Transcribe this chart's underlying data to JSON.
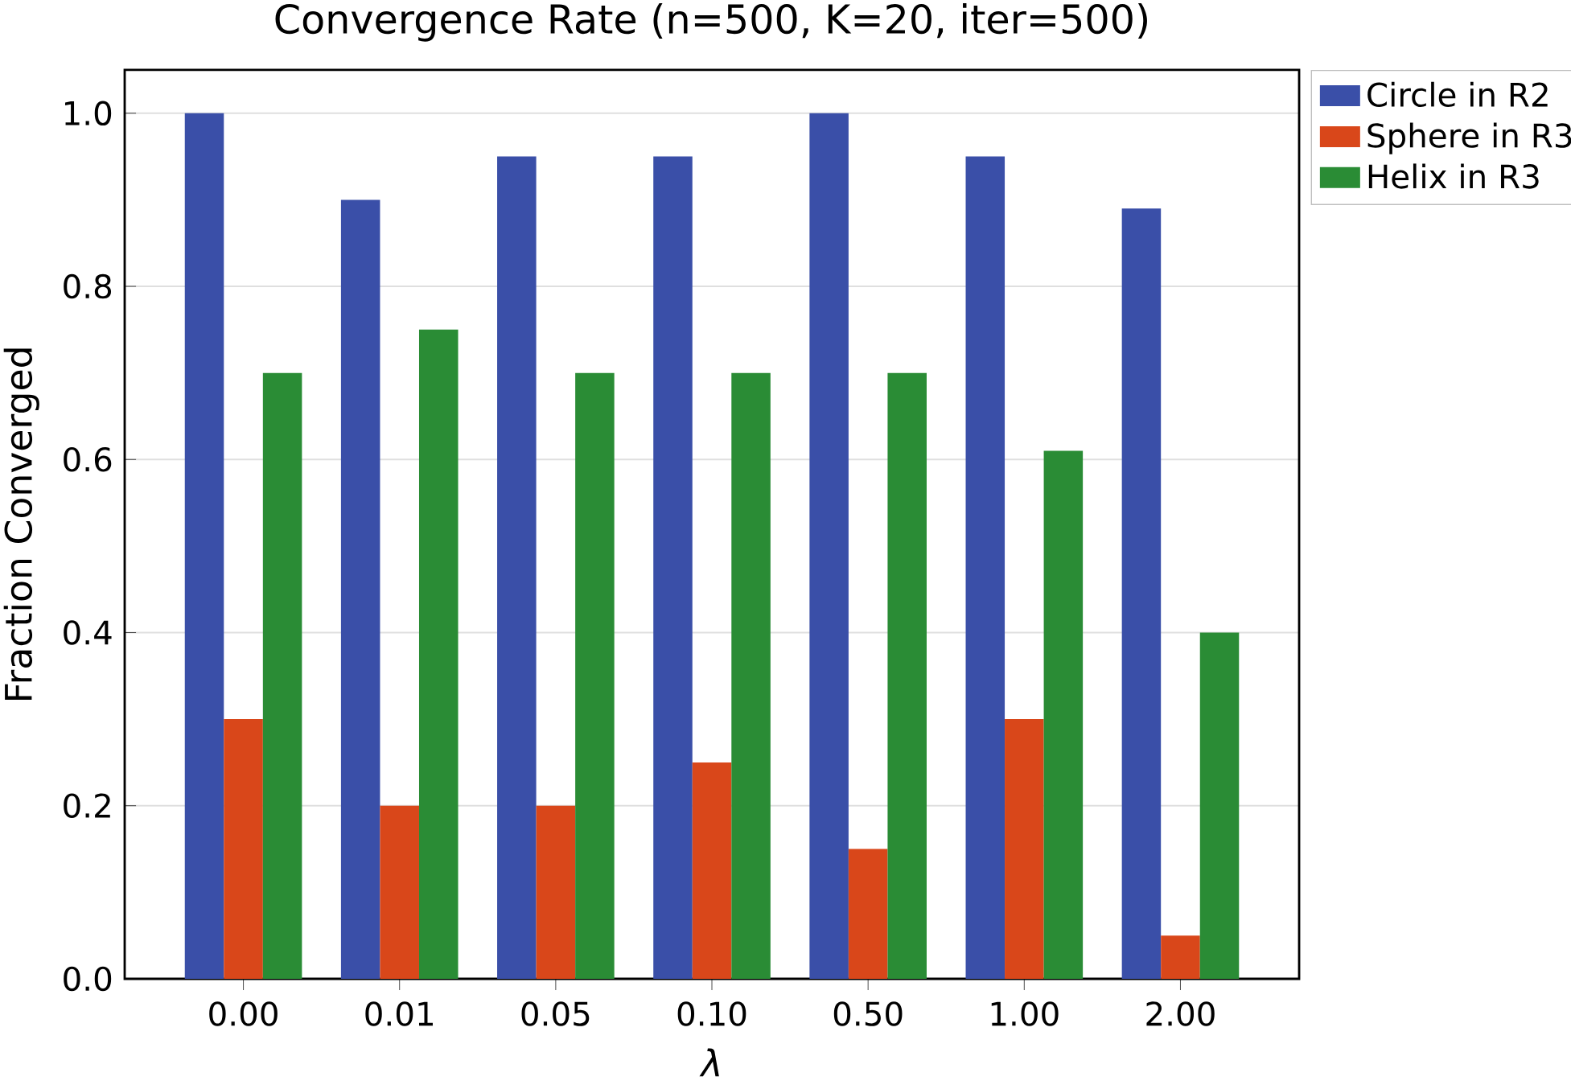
{
  "chart_data": {
    "type": "bar",
    "title": "Convergence Rate (n=500, K=20, iter=500)",
    "xlabel": "*λ*",
    "ylabel": "Fraction Converged",
    "categories": [
      "0.00",
      "0.01",
      "0.05",
      "0.10",
      "0.50",
      "1.00",
      "2.00"
    ],
    "series": [
      {
        "name": "Circle in R2",
        "color": "#3a4fa8",
        "values": [
          1.0,
          0.9,
          0.95,
          0.95,
          1.0,
          0.95,
          0.89
        ]
      },
      {
        "name": "Sphere in R3",
        "color": "#d9471a",
        "values": [
          0.3,
          0.2,
          0.2,
          0.25,
          0.15,
          0.3,
          0.05
        ]
      },
      {
        "name": "Helix in R3",
        "color": "#2a8c35",
        "values": [
          0.7,
          0.75,
          0.7,
          0.7,
          0.7,
          0.61,
          0.4
        ]
      }
    ],
    "ylim": [
      0,
      1.05
    ],
    "yticks": [
      {
        "value": 0,
        "label": "0.0"
      },
      0.2,
      0.4,
      0.6,
      0.8,
      {
        "value": 1,
        "label": "1.0"
      }
    ],
    "grid": "y",
    "legend": "top right"
  }
}
